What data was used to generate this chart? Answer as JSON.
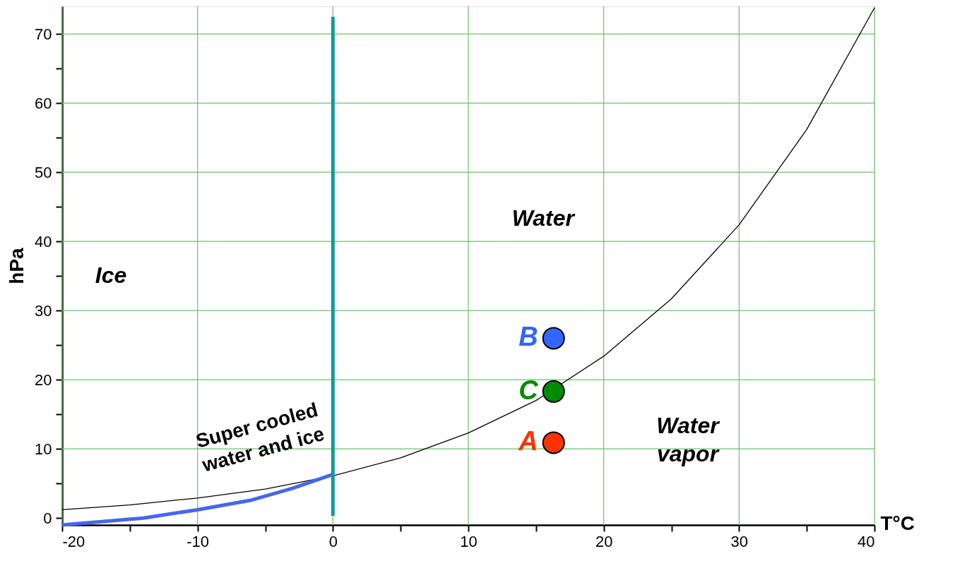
{
  "chart_data": {
    "type": "line",
    "xlabel": "T°C",
    "ylabel": "hPa",
    "xlim": [
      -20,
      40
    ],
    "ylim": [
      -1,
      74
    ],
    "xticks": [
      -20,
      {
        "value": -15,
        "label": null
      },
      -10,
      {
        "value": -5,
        "label": null
      },
      0,
      {
        "value": 5,
        "label": null
      },
      10,
      {
        "value": 15,
        "label": null
      },
      20,
      {
        "value": 25,
        "label": null
      },
      30,
      {
        "value": 35,
        "label": null
      },
      40
    ],
    "yticks": [
      0,
      {
        "value": 5,
        "label": null
      },
      10,
      {
        "value": 15,
        "label": null
      },
      20,
      {
        "value": 25,
        "label": null
      },
      30,
      {
        "value": 35,
        "label": null
      },
      40,
      {
        "value": 45,
        "label": null
      },
      50,
      {
        "value": 55,
        "label": null
      },
      60,
      {
        "value": 65,
        "label": null
      },
      70
    ],
    "grid": true,
    "line_style": "solid",
    "series": [
      {
        "color": "#000000",
        "marker": "none",
        "x": [
          -20,
          -15,
          -10,
          -5,
          0,
          5,
          10,
          15,
          20,
          25,
          30,
          35,
          40
        ],
        "values": [
          1.2,
          1.9,
          2.9,
          4.2,
          6.1,
          8.7,
          12.3,
          17.0,
          23.4,
          31.7,
          42.4,
          56.2,
          73.8
        ]
      },
      {
        "color": "#4466f0",
        "marker": "none",
        "x": [
          -20,
          -14,
          -10,
          -6,
          -3,
          0
        ],
        "values": [
          -1,
          0,
          1.2,
          2.6,
          4.3,
          6.3
        ]
      },
      {
        "color": "#129a9a",
        "marker": "none",
        "x": [
          0,
          0
        ],
        "values": [
          0.3,
          72.5
        ]
      },
      {
        "type": "scatter",
        "name": "A",
        "color": "#ff3300",
        "marker": "circle",
        "x": [
          16.3
        ],
        "values": [
          10.9
        ]
      },
      {
        "type": "scatter",
        "name": "C",
        "color": "#008c00",
        "marker": "circle",
        "x": [
          16.3
        ],
        "values": [
          18.3
        ]
      },
      {
        "type": "scatter",
        "name": "B",
        "color": "#3366ff",
        "marker": "circle",
        "x": [
          16.3
        ],
        "values": [
          26
        ]
      }
    ],
    "annotations": [
      "Water",
      "Ice",
      "Super cooled\nwater and ice",
      "Water\nvapor"
    ]
  }
}
